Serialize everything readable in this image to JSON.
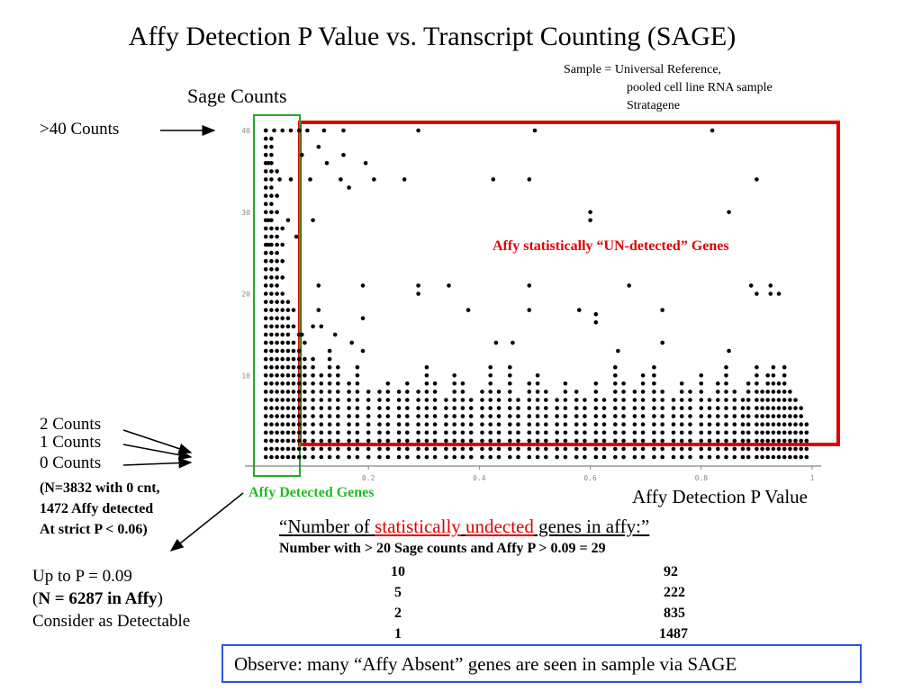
{
  "title": "Affy Detection P Value vs. Transcript Counting (SAGE)",
  "sample_note": [
    "Sample = Universal Reference,",
    "pooled cell line RNA sample",
    "Stratagene"
  ],
  "sage_counts_label": "Sage Counts",
  "gt40_label": ">40 Counts",
  "two_counts": "2 Counts",
  "one_counts": "1 Counts",
  "zero_counts": "0 Counts",
  "zero_note": [
    "(N=3832 with 0 cnt,",
    "1472 Affy detected",
    "At strict P < 0.06)"
  ],
  "upto": {
    "line1": "Up to P = 0.09",
    "line2_pre": "(",
    "line2_bold": "N = 6287 in Affy",
    "line2_post": ")",
    "line3": "Consider as Detectable"
  },
  "red_box_label": "Affy statistically “UN-detected” Genes",
  "green_box_label": "Affy Detected Genes",
  "x_axis_label": "Affy Detection P Value",
  "number_of": {
    "pre": "“Number of ",
    "w1": "statistically",
    "sp": " ",
    "w2": "undected",
    "post": " genes in affy:”"
  },
  "table_header": "Number with > 20 Sage counts and Affy P > 0.09 = 29",
  "table_rows": [
    {
      "sage": "10",
      "count": "92"
    },
    {
      "sage": "5",
      "count": "222"
    },
    {
      "sage": "2",
      "count": "835"
    },
    {
      "sage": "1",
      "count": "1487"
    }
  ],
  "observe": "Observe: many “Affy Absent” genes  are seen in sample via SAGE",
  "colors": {
    "red": "#e00000",
    "green": "#22bb22",
    "blue": "#2a56d6"
  },
  "chart_data": {
    "type": "scatter",
    "xlabel": "Affy Detection P Value",
    "ylabel": "Sage Counts",
    "xlim": [
      0,
      1
    ],
    "ylim": [
      0,
      40
    ],
    "x_ticks": [
      "0.2",
      "0.4",
      "0.6",
      "0.8",
      "1"
    ],
    "y_ticks": [
      "10",
      "20",
      "30",
      "40"
    ],
    "grid": false,
    "highlight_regions": [
      {
        "label": "Affy Detected Genes",
        "color": "#22bb22",
        "x": [
          0,
          0.09
        ],
        "y": [
          0,
          40
        ]
      },
      {
        "label": "Affy statistically “UN-detected” Genes",
        "color": "#e00000",
        "x": [
          0.09,
          1
        ],
        "y": [
          3,
          40
        ]
      }
    ],
    "points": [
      [
        0.015,
        40
      ],
      [
        0.03,
        40
      ],
      [
        0.045,
        40
      ],
      [
        0.06,
        40
      ],
      [
        0.075,
        40
      ],
      [
        0.09,
        40
      ],
      [
        0.12,
        40
      ],
      [
        0.155,
        40
      ],
      [
        0.29,
        40
      ],
      [
        0.5,
        40
      ],
      [
        0.82,
        40
      ],
      [
        0.11,
        38
      ],
      [
        0.08,
        37
      ],
      [
        0.155,
        37
      ],
      [
        0.195,
        36
      ],
      [
        0.02,
        36
      ],
      [
        0.125,
        36
      ],
      [
        0.04,
        34
      ],
      [
        0.06,
        34
      ],
      [
        0.095,
        34
      ],
      [
        0.15,
        34
      ],
      [
        0.21,
        34
      ],
      [
        0.265,
        34
      ],
      [
        0.425,
        34
      ],
      [
        0.49,
        34
      ],
      [
        0.9,
        34
      ],
      [
        0.165,
        33
      ],
      [
        0.6,
        30
      ],
      [
        0.6,
        29
      ],
      [
        0.85,
        30
      ],
      [
        0.02,
        29
      ],
      [
        0.055,
        29
      ],
      [
        0.1,
        29
      ],
      [
        0.07,
        27
      ],
      [
        0.02,
        26
      ],
      [
        0.11,
        21
      ],
      [
        0.19,
        21
      ],
      [
        0.29,
        21
      ],
      [
        0.345,
        21
      ],
      [
        0.49,
        21
      ],
      [
        0.67,
        21
      ],
      [
        0.89,
        21
      ],
      [
        0.925,
        21
      ],
      [
        0.29,
        20
      ],
      [
        0.925,
        20
      ],
      [
        0.94,
        20
      ],
      [
        0.9,
        20
      ],
      [
        0.11,
        18
      ],
      [
        0.38,
        18
      ],
      [
        0.49,
        18
      ],
      [
        0.58,
        18
      ],
      [
        0.61,
        17.5
      ],
      [
        0.61,
        16.5
      ],
      [
        0.73,
        18
      ],
      [
        0.19,
        17
      ],
      [
        0.115,
        16
      ],
      [
        0.1,
        16
      ],
      [
        0.14,
        15
      ],
      [
        0.43,
        14
      ],
      [
        0.46,
        14
      ],
      [
        0.73,
        14
      ],
      [
        0.65,
        13
      ],
      [
        0.85,
        13
      ],
      [
        0.17,
        14
      ],
      [
        0.19,
        13
      ],
      [
        0.08,
        15
      ]
    ],
    "dense_columns": [
      {
        "x": 0.015,
        "y": [
          0,
          1,
          2,
          3,
          4,
          5,
          6,
          7,
          8,
          9,
          10,
          11,
          12,
          13,
          14,
          15,
          16,
          17,
          18,
          19,
          20,
          21,
          22,
          23,
          24,
          25,
          26,
          27,
          28,
          29,
          30,
          31,
          32,
          33,
          34,
          35,
          36,
          37,
          38,
          39,
          40
        ]
      },
      {
        "x": 0.025,
        "y": [
          0,
          1,
          2,
          3,
          4,
          5,
          6,
          7,
          8,
          9,
          10,
          11,
          12,
          13,
          14,
          15,
          16,
          17,
          18,
          19,
          20,
          21,
          22,
          23,
          24,
          25,
          26,
          27,
          28,
          29,
          30,
          31,
          32,
          33,
          34,
          35,
          36,
          37,
          38,
          39
        ]
      },
      {
        "x": 0.035,
        "y": [
          0,
          1,
          2,
          3,
          4,
          5,
          6,
          7,
          8,
          9,
          10,
          11,
          12,
          13,
          14,
          15,
          16,
          17,
          18,
          19,
          20,
          21,
          22,
          23,
          24,
          25,
          26,
          27,
          28,
          30,
          32,
          35
        ]
      },
      {
        "x": 0.045,
        "y": [
          0,
          1,
          2,
          3,
          4,
          5,
          6,
          7,
          8,
          9,
          10,
          11,
          12,
          13,
          14,
          15,
          16,
          17,
          18,
          19,
          20,
          22,
          24,
          26,
          28
        ]
      },
      {
        "x": 0.055,
        "y": [
          0,
          1,
          2,
          3,
          4,
          5,
          6,
          7,
          8,
          9,
          10,
          11,
          12,
          13,
          14,
          15,
          16,
          17,
          18,
          19
        ]
      },
      {
        "x": 0.065,
        "y": [
          0,
          1,
          2,
          3,
          4,
          5,
          6,
          7,
          8,
          9,
          10,
          11,
          12,
          13,
          14,
          16,
          18
        ]
      },
      {
        "x": 0.075,
        "y": [
          0,
          1,
          2,
          3,
          4,
          5,
          6,
          7,
          8,
          9,
          10,
          11,
          12,
          13,
          15
        ]
      },
      {
        "x": 0.085,
        "y": [
          0,
          1,
          2,
          3,
          4,
          5,
          6,
          7,
          8,
          9,
          10,
          11,
          12,
          14
        ]
      }
    ],
    "sparse_columns": [
      {
        "x": 0.1,
        "top": 12
      },
      {
        "x": 0.115,
        "top": 10
      },
      {
        "x": 0.13,
        "top": 13
      },
      {
        "x": 0.145,
        "top": 11
      },
      {
        "x": 0.165,
        "top": 9
      },
      {
        "x": 0.18,
        "top": 11
      },
      {
        "x": 0.2,
        "top": 8
      },
      {
        "x": 0.22,
        "top": 8
      },
      {
        "x": 0.235,
        "top": 9
      },
      {
        "x": 0.255,
        "top": 8
      },
      {
        "x": 0.27,
        "top": 9
      },
      {
        "x": 0.29,
        "top": 8
      },
      {
        "x": 0.305,
        "top": 11
      },
      {
        "x": 0.32,
        "top": 9
      },
      {
        "x": 0.34,
        "top": 7
      },
      {
        "x": 0.355,
        "top": 10
      },
      {
        "x": 0.37,
        "top": 9
      },
      {
        "x": 0.385,
        "top": 7
      },
      {
        "x": 0.405,
        "top": 8
      },
      {
        "x": 0.42,
        "top": 11
      },
      {
        "x": 0.435,
        "top": 8
      },
      {
        "x": 0.455,
        "top": 11
      },
      {
        "x": 0.47,
        "top": 7
      },
      {
        "x": 0.49,
        "top": 9
      },
      {
        "x": 0.505,
        "top": 10
      },
      {
        "x": 0.52,
        "top": 8
      },
      {
        "x": 0.54,
        "top": 7
      },
      {
        "x": 0.555,
        "top": 9
      },
      {
        "x": 0.575,
        "top": 8
      },
      {
        "x": 0.59,
        "top": 7
      },
      {
        "x": 0.61,
        "top": 9
      },
      {
        "x": 0.625,
        "top": 7
      },
      {
        "x": 0.645,
        "top": 11
      },
      {
        "x": 0.66,
        "top": 9
      },
      {
        "x": 0.68,
        "top": 8
      },
      {
        "x": 0.695,
        "top": 10
      },
      {
        "x": 0.715,
        "top": 11
      },
      {
        "x": 0.73,
        "top": 8
      },
      {
        "x": 0.75,
        "top": 7
      },
      {
        "x": 0.765,
        "top": 9
      },
      {
        "x": 0.78,
        "top": 8
      },
      {
        "x": 0.8,
        "top": 10
      },
      {
        "x": 0.815,
        "top": 7
      },
      {
        "x": 0.83,
        "top": 9
      },
      {
        "x": 0.845,
        "top": 11
      },
      {
        "x": 0.86,
        "top": 8
      },
      {
        "x": 0.875,
        "top": 7
      },
      {
        "x": 0.885,
        "top": 9
      },
      {
        "x": 0.9,
        "top": 11
      },
      {
        "x": 0.91,
        "top": 8
      },
      {
        "x": 0.92,
        "top": 10
      },
      {
        "x": 0.93,
        "top": 11
      },
      {
        "x": 0.94,
        "top": 9
      },
      {
        "x": 0.95,
        "top": 11
      },
      {
        "x": 0.96,
        "top": 8
      },
      {
        "x": 0.97,
        "top": 7
      },
      {
        "x": 0.98,
        "top": 6
      },
      {
        "x": 0.99,
        "top": 4
      }
    ]
  }
}
